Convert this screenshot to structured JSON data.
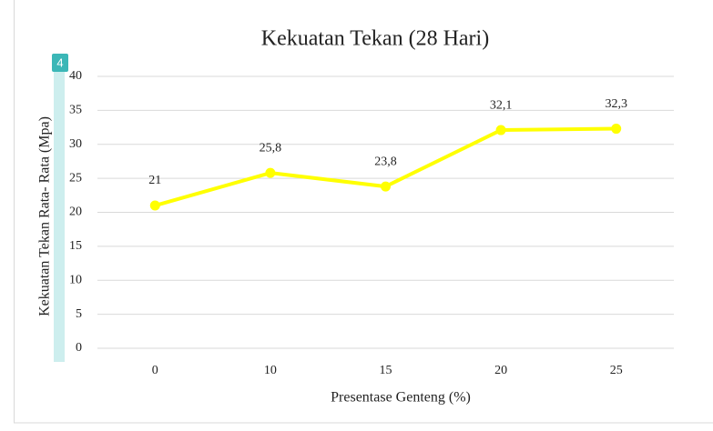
{
  "badge": "4",
  "chart_data": {
    "type": "line",
    "title": "Kekuatan Tekan (28 Hari)",
    "x_label": "Presentase Genteng (%)",
    "y_label": "Kekuatan Tekan Rata- Rata (Mpa)",
    "categories": [
      "0",
      "10",
      "15",
      "20",
      "25"
    ],
    "series": [
      {
        "name": "Kekuatan Tekan",
        "color": "#ffff00",
        "values": [
          21,
          25.8,
          23.8,
          32.1,
          32.3
        ],
        "value_labels": [
          "21",
          "25,8",
          "23,8",
          "32,1",
          "32,3"
        ]
      }
    ],
    "ylim": [
      0,
      40
    ],
    "yticks": [
      0,
      5,
      10,
      15,
      20,
      25,
      30,
      35,
      40
    ],
    "grid": true
  }
}
